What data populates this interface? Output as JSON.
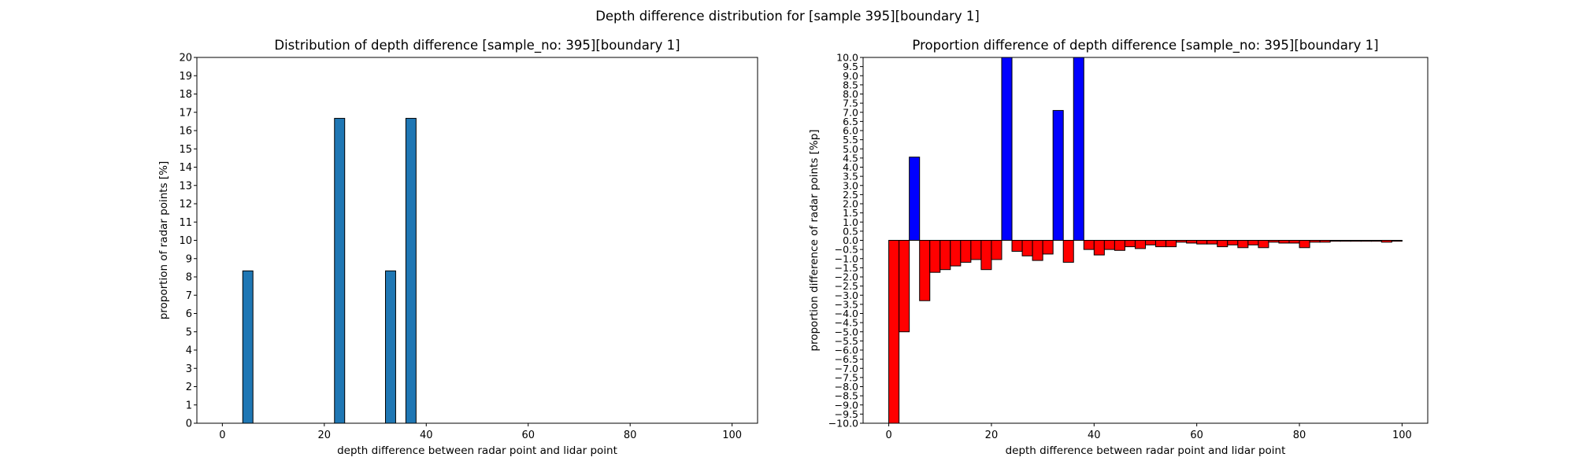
{
  "figure": {
    "suptitle": "Depth difference distribution for [sample 395][boundary 1]"
  },
  "chart_data": [
    {
      "type": "bar",
      "title": "Distribution of depth difference [sample_no: 395][boundary 1]",
      "xlabel": "depth difference between radar point and lidar point",
      "ylabel": "proportion of radar points [%]",
      "xlim": [
        -5,
        105
      ],
      "ylim": [
        0,
        20
      ],
      "xticks": [
        0,
        20,
        40,
        60,
        80,
        100
      ],
      "yticks": [
        0,
        1,
        2,
        3,
        4,
        5,
        6,
        7,
        8,
        9,
        10,
        11,
        12,
        13,
        14,
        15,
        16,
        17,
        18,
        19,
        20
      ],
      "bin_width": 2,
      "bar_color": "#1f77b4",
      "bins": [
        {
          "x": 5,
          "value": 8.33
        },
        {
          "x": 23,
          "value": 16.67
        },
        {
          "x": 33,
          "value": 8.33
        },
        {
          "x": 37,
          "value": 16.67
        }
      ]
    },
    {
      "type": "bar",
      "title": "Proportion difference of depth difference [sample_no: 395][boundary 1]",
      "xlabel": "depth difference between radar point and lidar point",
      "ylabel": "proportion difference of radar points [%p]",
      "xlim": [
        -5,
        105
      ],
      "ylim": [
        -10,
        10
      ],
      "xticks": [
        0,
        20,
        40,
        60,
        80,
        100
      ],
      "ytick_step": 0.5,
      "bin_width": 2,
      "positive_color": "#0000ff",
      "negative_color": "#ff0000",
      "bins": [
        {
          "x": 1,
          "value": -10.0
        },
        {
          "x": 3,
          "value": -5.0
        },
        {
          "x": 5,
          "value": 4.55
        },
        {
          "x": 7,
          "value": -3.3
        },
        {
          "x": 9,
          "value": -1.75
        },
        {
          "x": 11,
          "value": -1.6
        },
        {
          "x": 13,
          "value": -1.4
        },
        {
          "x": 15,
          "value": -1.2
        },
        {
          "x": 17,
          "value": -1.05
        },
        {
          "x": 19,
          "value": -1.6
        },
        {
          "x": 21,
          "value": -1.05
        },
        {
          "x": 23,
          "value": 10.0
        },
        {
          "x": 25,
          "value": -0.6
        },
        {
          "x": 27,
          "value": -0.85
        },
        {
          "x": 29,
          "value": -1.1
        },
        {
          "x": 31,
          "value": -0.75
        },
        {
          "x": 33,
          "value": 7.1
        },
        {
          "x": 35,
          "value": -1.2
        },
        {
          "x": 37,
          "value": 10.0
        },
        {
          "x": 39,
          "value": -0.5
        },
        {
          "x": 41,
          "value": -0.8
        },
        {
          "x": 43,
          "value": -0.5
        },
        {
          "x": 45,
          "value": -0.55
        },
        {
          "x": 47,
          "value": -0.35
        },
        {
          "x": 49,
          "value": -0.45
        },
        {
          "x": 51,
          "value": -0.25
        },
        {
          "x": 53,
          "value": -0.35
        },
        {
          "x": 55,
          "value": -0.35
        },
        {
          "x": 57,
          "value": -0.1
        },
        {
          "x": 59,
          "value": -0.15
        },
        {
          "x": 61,
          "value": -0.2
        },
        {
          "x": 63,
          "value": -0.2
        },
        {
          "x": 65,
          "value": -0.35
        },
        {
          "x": 67,
          "value": -0.25
        },
        {
          "x": 69,
          "value": -0.4
        },
        {
          "x": 71,
          "value": -0.25
        },
        {
          "x": 73,
          "value": -0.4
        },
        {
          "x": 75,
          "value": -0.1
        },
        {
          "x": 77,
          "value": -0.15
        },
        {
          "x": 79,
          "value": -0.15
        },
        {
          "x": 81,
          "value": -0.4
        },
        {
          "x": 83,
          "value": -0.1
        },
        {
          "x": 85,
          "value": -0.1
        },
        {
          "x": 87,
          "value": -0.05
        },
        {
          "x": 89,
          "value": -0.05
        },
        {
          "x": 91,
          "value": -0.05
        },
        {
          "x": 93,
          "value": -0.05
        },
        {
          "x": 95,
          "value": -0.05
        },
        {
          "x": 97,
          "value": -0.1
        },
        {
          "x": 99,
          "value": -0.05
        }
      ]
    }
  ]
}
